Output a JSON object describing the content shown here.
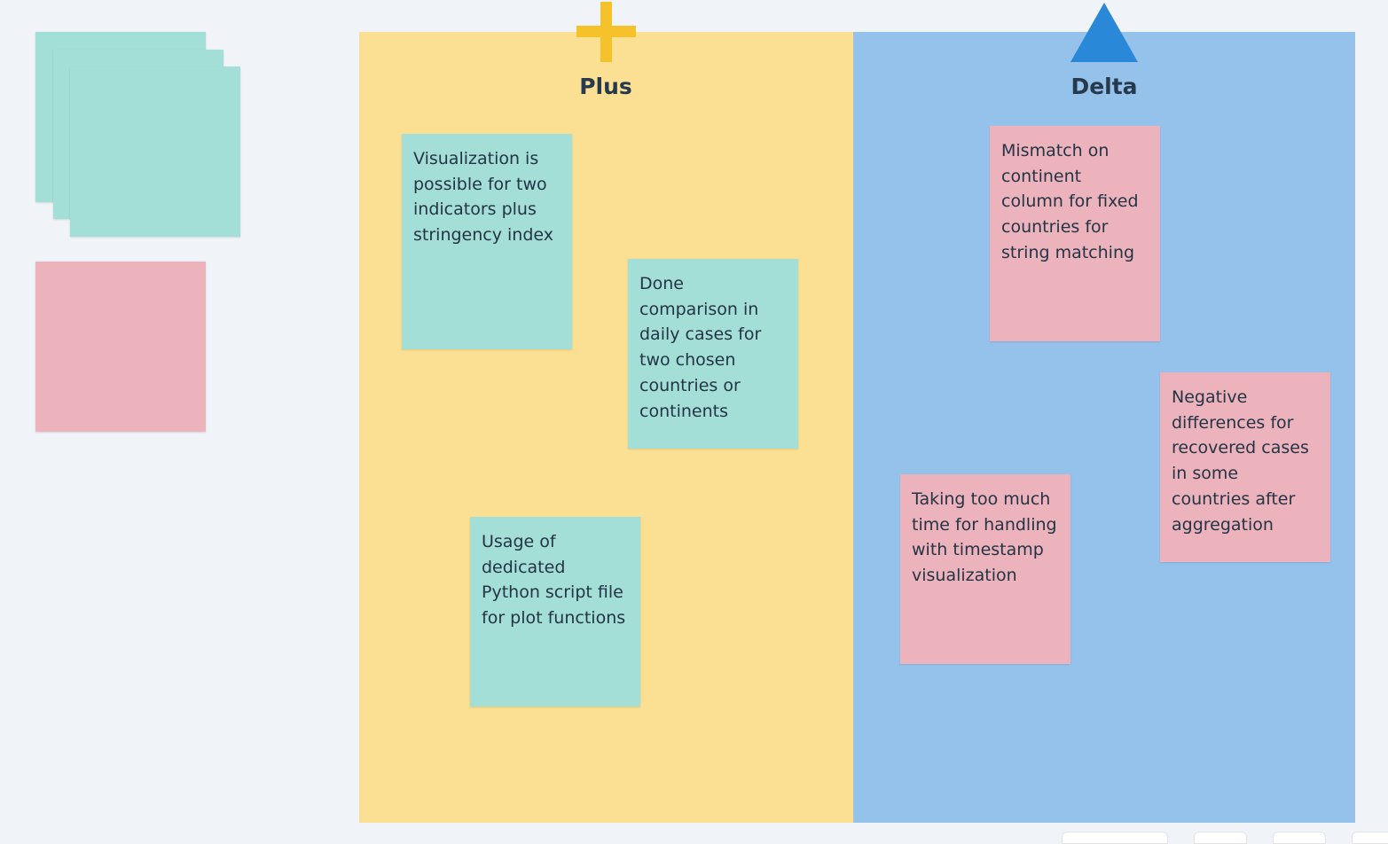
{
  "board": {
    "columns": [
      {
        "title": "Plus",
        "icon": "plus-icon",
        "color": "#fbe093"
      },
      {
        "title": "Delta",
        "icon": "triangle-icon",
        "color": "#95c2eb"
      }
    ]
  },
  "notes": {
    "plus": [
      {
        "text": "Visualization is possible for two indicators plus stringency index",
        "color": "#a3dfd7"
      },
      {
        "text": "Done comparison in daily cases for two chosen countries or continents",
        "color": "#a3dfd7"
      },
      {
        "text": "Usage of dedicated Python script file for plot functions",
        "color": "#a3dfd7"
      }
    ],
    "delta": [
      {
        "text": "Mismatch on continent column for fixed countries for string matching",
        "color": "#ecb3bc"
      },
      {
        "text": "Negative differences for recovered cases in some countries after aggregation",
        "color": "#ecb3bc"
      },
      {
        "text": "Taking too much time for handling with timestamp visualization",
        "color": "#ecb3bc"
      }
    ]
  },
  "palette": {
    "teal_stack_color": "#a3dfd7",
    "pink_note_color": "#ecb3bc"
  }
}
